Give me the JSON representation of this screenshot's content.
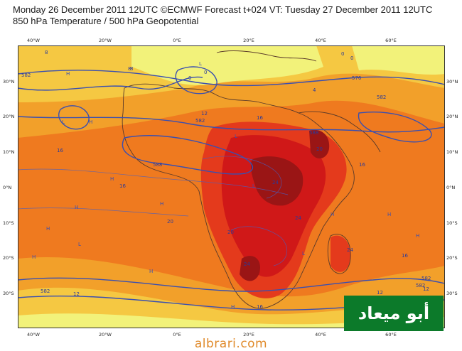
{
  "header": {
    "line1": "Monday 26 December 2011 12UTC ©ECMWF Forecast t+024 VT: Tuesday 27 December 2011 12UTC",
    "line2": "850 hPa Temperature / 500 hPa Geopotential"
  },
  "axes": {
    "lon": [
      "40°W",
      "20°W",
      "0°E",
      "20°E",
      "40°E",
      "60°E"
    ],
    "lat": [
      "30°N",
      "20°N",
      "10°N",
      "0°N",
      "10°S",
      "20°S",
      "30°S"
    ]
  },
  "contour_labels": {
    "temps": [
      "8",
      "8",
      "0",
      "0",
      "12",
      "16",
      "16",
      "16",
      "20",
      "20",
      "20",
      "24",
      "24",
      "24",
      "24",
      "16",
      "16",
      "12",
      "12",
      "8",
      "4",
      "0",
      "0",
      "12",
      "16"
    ],
    "heights": [
      "582",
      "582",
      "576",
      "582",
      "588",
      "582",
      "582",
      "582",
      "588"
    ]
  },
  "pressure_marks": [
    "H",
    "H",
    "H",
    "H",
    "L",
    "L",
    "L",
    "H",
    "H",
    "L",
    "H",
    "H",
    "L",
    "H",
    "L",
    "H",
    "H",
    "H"
  ],
  "colors": {
    "cold": "#f2f27a",
    "cool": "#f5c842",
    "mid": "#f2a02a",
    "warm": "#ef7a1f",
    "hot": "#e43a1c",
    "hotter": "#d01818",
    "hottest": "#9a1515",
    "contour": "#3a4fb0",
    "land": "#5a3a2a"
  },
  "logo": {
    "text": "أبو ميعاد"
  },
  "watermark": "albrari.com"
}
